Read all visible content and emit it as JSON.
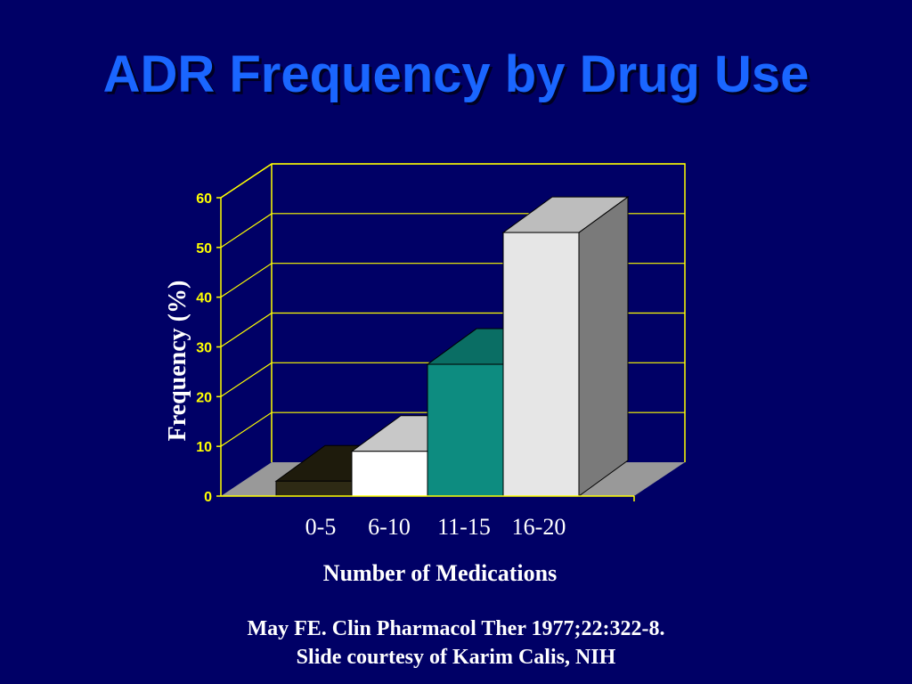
{
  "slide": {
    "title": "ADR Frequency by Drug Use",
    "citation_line1": "May FE.  Clin Pharmacol Ther 1977;22:322-8.",
    "citation_line2": "Slide courtesy of Karim Calis, NIH"
  },
  "colors": {
    "background": "#000066",
    "title": "#1a66ff",
    "axis": "#ffff00",
    "floor": "#999999"
  },
  "chart_data": {
    "type": "bar",
    "categories": [
      "0-5",
      "6-10",
      "11-15",
      "16-20"
    ],
    "values": [
      3,
      9,
      26.5,
      53
    ],
    "title": "",
    "xlabel": "Number of Medications",
    "ylabel": "Frequency (%)",
    "ylim": [
      0,
      60
    ],
    "yticks": [
      0,
      10,
      20,
      30,
      40,
      50,
      60
    ],
    "grid": true,
    "legend": "none",
    "bar_colors": [
      {
        "front": "#2e2a14",
        "top": "#1e1b0c",
        "side": "#15130a"
      },
      {
        "front": "#ffffff",
        "top": "#c8c8c8",
        "side": "#a0a0a0"
      },
      {
        "front": "#0d8c80",
        "top": "#0a6e64",
        "side": "#075850"
      },
      {
        "front": "#e6e6e6",
        "top": "#bdbdbd",
        "side": "#7a7a7a"
      }
    ]
  }
}
